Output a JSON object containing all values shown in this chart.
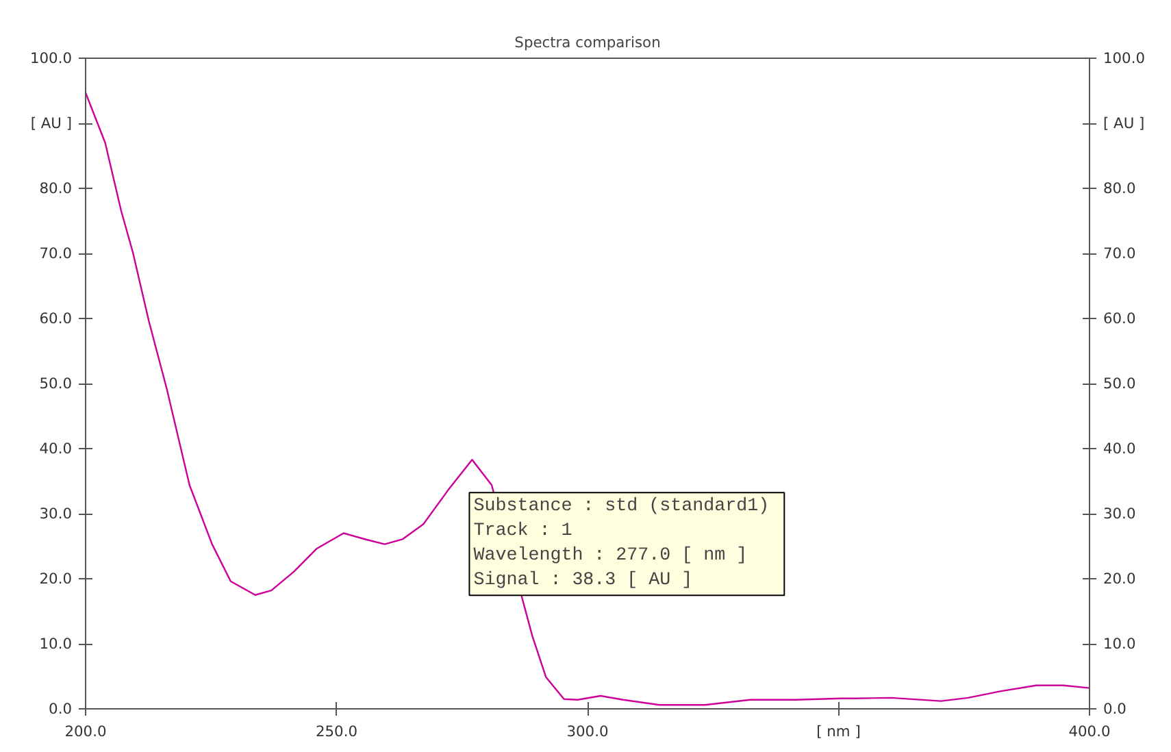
{
  "chart_data": {
    "type": "line",
    "title": "Spectra comparison",
    "x": [
      200,
      203.9,
      207.1,
      209.4,
      212.6,
      216.2,
      220.7,
      225.2,
      228.9,
      233.8,
      237.0,
      241.5,
      246.0,
      251.4,
      256.0,
      259.6,
      263.2,
      267.3,
      272.3,
      277.0,
      280.9,
      289.0,
      291.7,
      295.3,
      298.0,
      302.6,
      307.1,
      314.3,
      323.4,
      332.4,
      341.5,
      350.5,
      353.2,
      360.5,
      370.4,
      375.8,
      382.2,
      389.4,
      394.8,
      400
    ],
    "series": [
      {
        "color": "#cc0099",
        "values": [
          94.7,
          87.0,
          76.5,
          70.2,
          59.6,
          49.1,
          34.4,
          25.3,
          19.6,
          17.5,
          18.2,
          21.1,
          24.6,
          27.0,
          26.0,
          25.3,
          26.1,
          28.4,
          33.7,
          38.3,
          34.4,
          11.2,
          4.9,
          1.5,
          1.4,
          2.0,
          1.4,
          0.6,
          0.6,
          1.4,
          1.4,
          1.6,
          1.6,
          1.7,
          1.2,
          1.7,
          2.7,
          3.6,
          3.6,
          3.2
        ]
      }
    ],
    "xlim": [
      200,
      400
    ],
    "xticks": [
      {
        "value": 200,
        "label": "200.0"
      },
      {
        "value": 250,
        "label": "250.0"
      },
      {
        "value": 300,
        "label": "300.0"
      },
      {
        "value": 350,
        "label": "[ nm ]"
      },
      {
        "value": 400,
        "label": "400.0"
      }
    ],
    "ylim": [
      0,
      100
    ],
    "yticks": [
      {
        "value": 0,
        "label": "0.0"
      },
      {
        "value": 10,
        "label": "10.0"
      },
      {
        "value": 20,
        "label": "20.0"
      },
      {
        "value": 30,
        "label": "30.0"
      },
      {
        "value": 40,
        "label": "40.0"
      },
      {
        "value": 50,
        "label": "50.0"
      },
      {
        "value": 60,
        "label": "60.0"
      },
      {
        "value": 70,
        "label": "70.0"
      },
      {
        "value": 80,
        "label": "80.0"
      },
      {
        "value": 90,
        "label": "[ AU ]"
      },
      {
        "value": 100,
        "label": "100.0"
      }
    ],
    "y2lim": [
      0,
      100
    ],
    "y2ticks": [
      {
        "value": 0,
        "label": "0.0"
      },
      {
        "value": 10,
        "label": "10.0"
      },
      {
        "value": 20,
        "label": "20.0"
      },
      {
        "value": 30,
        "label": "30.0"
      },
      {
        "value": 40,
        "label": "40.0"
      },
      {
        "value": 50,
        "label": "50.0"
      },
      {
        "value": 60,
        "label": "60.0"
      },
      {
        "value": 70,
        "label": "70.0"
      },
      {
        "value": 80,
        "label": "80.0"
      },
      {
        "value": 90,
        "label": "[ AU ]"
      },
      {
        "value": 100,
        "label": "100.0"
      }
    ],
    "annotations": [
      {
        "text": "Substance  : std (standard1)\nTrack      : 1\nWavelength : 277.0 [ nm ]\nSignal     :  38.3 [ AU ]",
        "x": 277.0,
        "y": 38.3
      }
    ],
    "grid": false,
    "marker": "none",
    "line_style": "solid"
  }
}
